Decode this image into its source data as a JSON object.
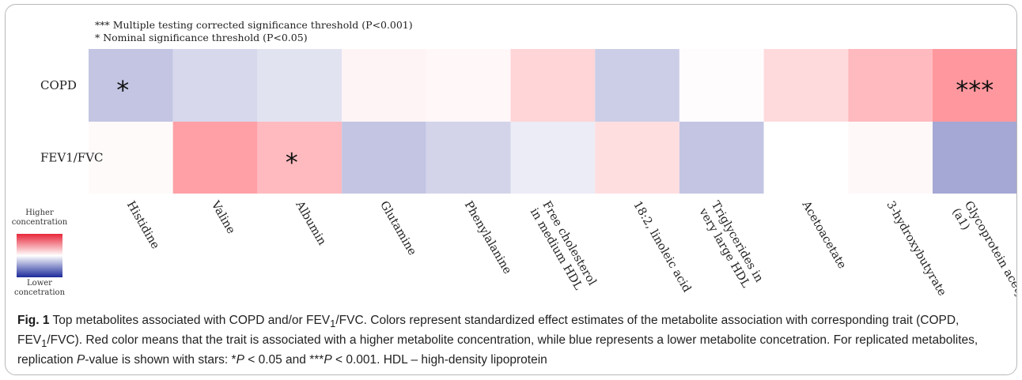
{
  "chart_data": {
    "type": "heatmap",
    "notes": [
      "*** Multiple testing corrected significance threshold (P<0.001)",
      "* Nominal significance threshold (P<0.05)"
    ],
    "rows": [
      "COPD",
      "FEV1/FVC"
    ],
    "columns": [
      [
        "Histidine"
      ],
      [
        "Valine"
      ],
      [
        "Albumin"
      ],
      [
        "Glutamine"
      ],
      [
        "Phenylalanine"
      ],
      [
        "Free cholesterol",
        "in medium HDL"
      ],
      [
        "18:2, linoleic acid"
      ],
      [
        "Triglycerides in",
        "very large HDL"
      ],
      [
        "Acetoacetate"
      ],
      [
        "3-hydroxybutyrate"
      ],
      [
        "Glycoprotein acetyl",
        "(a1)"
      ]
    ],
    "values": [
      [
        -0.45,
        -0.3,
        -0.22,
        0.08,
        0.06,
        0.32,
        -0.38,
        0.02,
        0.28,
        0.52,
        0.78
      ],
      [
        0.04,
        0.72,
        0.52,
        -0.45,
        -0.33,
        -0.15,
        0.25,
        -0.45,
        0.0,
        0.05,
        -0.68
      ]
    ],
    "significance": [
      [
        "*",
        "",
        "",
        "",
        "",
        "",
        "",
        "",
        "",
        "",
        "***"
      ],
      [
        "",
        "",
        "*",
        "",
        "",
        "",
        "",
        "",
        "",
        "",
        ""
      ]
    ],
    "colorbar": {
      "high_label": [
        "Higher",
        "concentration"
      ],
      "low_label": [
        "Lower",
        "concetration"
      ],
      "colors": [
        "#e8273a",
        "#ffffff",
        "#1c2a9a"
      ]
    },
    "cell_colors": {
      "positive": "#ff7b83",
      "negative": "#7a7ec0",
      "neutral": "#ffffff"
    }
  },
  "caption": {
    "label": "Fig. 1",
    "text_parts": [
      " Top metabolites associated with COPD and/or FEV",
      "/FVC. Colors represent standardized effect estimates of the metabolite association with corresponding trait (COPD, FEV",
      "/FVC). Red color means that the trait is associated with a higher metabolite concentration, while blue represents a lower metabolite concetration. For replicated metabolites, replication ",
      "-value is shown with stars: *",
      " < 0.05 and ***",
      " < 0.001. HDL – high-density lipoprotein"
    ],
    "subscript": "1",
    "italic_p": "P"
  }
}
